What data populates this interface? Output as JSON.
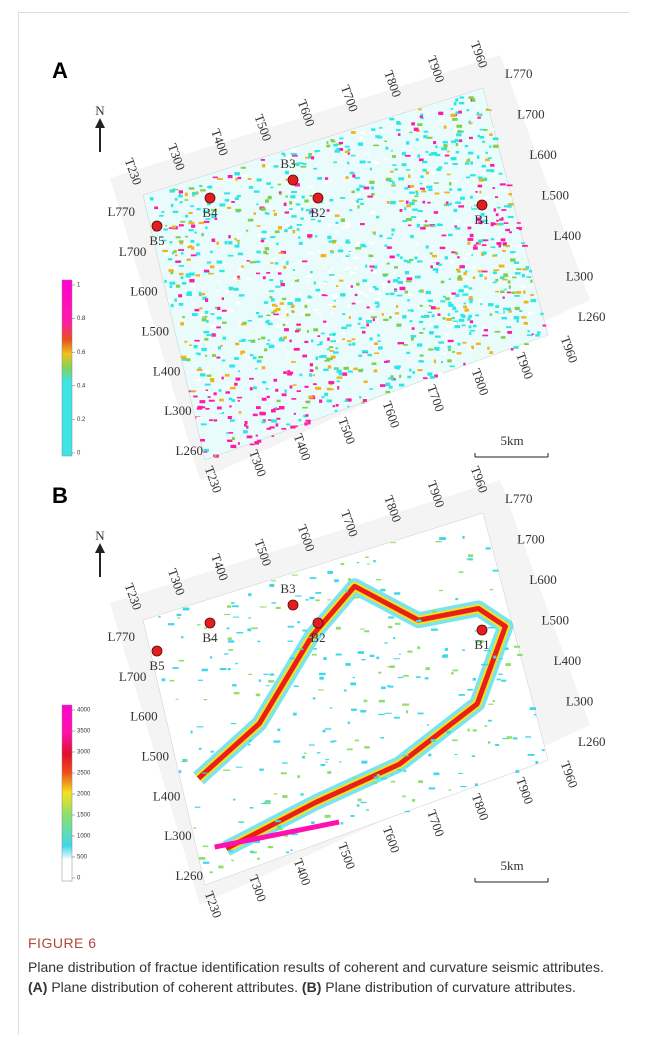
{
  "panels": [
    {
      "letter": "A",
      "north": "N",
      "top_labels": [
        "T230",
        "T300",
        "T400",
        "T500",
        "T600",
        "T700",
        "T800",
        "T900",
        "T960"
      ],
      "right_labels": [
        "L770",
        "L700",
        "L600",
        "L500",
        "L400",
        "L300",
        "L260"
      ],
      "left_labels": [
        "L770",
        "L700",
        "L600",
        "L500",
        "L400",
        "L300",
        "L260"
      ],
      "bottom_labels": [
        "T230",
        "T300",
        "T400",
        "T500",
        "T600",
        "T700",
        "T800",
        "T900",
        "T960"
      ],
      "wells": [
        "B3",
        "B4",
        "B2",
        "B1",
        "B5"
      ],
      "colorbar_ticks": [
        "1",
        "0.8",
        "0.6",
        "0.4",
        "0.2",
        "0"
      ],
      "scale": "5km"
    },
    {
      "letter": "B",
      "north": "N",
      "top_labels": [
        "T230",
        "T300",
        "T400",
        "T500",
        "T600",
        "T700",
        "T800",
        "T900",
        "T960"
      ],
      "right_labels": [
        "L770",
        "L700",
        "L600",
        "L500",
        "L400",
        "L300",
        "L260"
      ],
      "left_labels": [
        "L770",
        "L700",
        "L600",
        "L500",
        "L400",
        "L300",
        "L260"
      ],
      "bottom_labels": [
        "T230",
        "T300",
        "T400",
        "T500",
        "T600",
        "T700",
        "T800",
        "T900",
        "T960"
      ],
      "wells": [
        "B3",
        "B4",
        "B2",
        "B1",
        "B5"
      ],
      "colorbar_ticks": [
        "4000",
        "3500",
        "3000",
        "2500",
        "2000",
        "1500",
        "1000",
        "500",
        "0"
      ],
      "scale": "5km"
    }
  ],
  "caption": {
    "label": "FIGURE 6",
    "text": "Plane distribution of fractue identification results of coherent and curvature seismic attributes.",
    "a_label": "(A)",
    "a_text": "Plane distribution of coherent attributes.",
    "b_label": "(B)",
    "b_text": "Plane distribution of curvature attributes."
  }
}
